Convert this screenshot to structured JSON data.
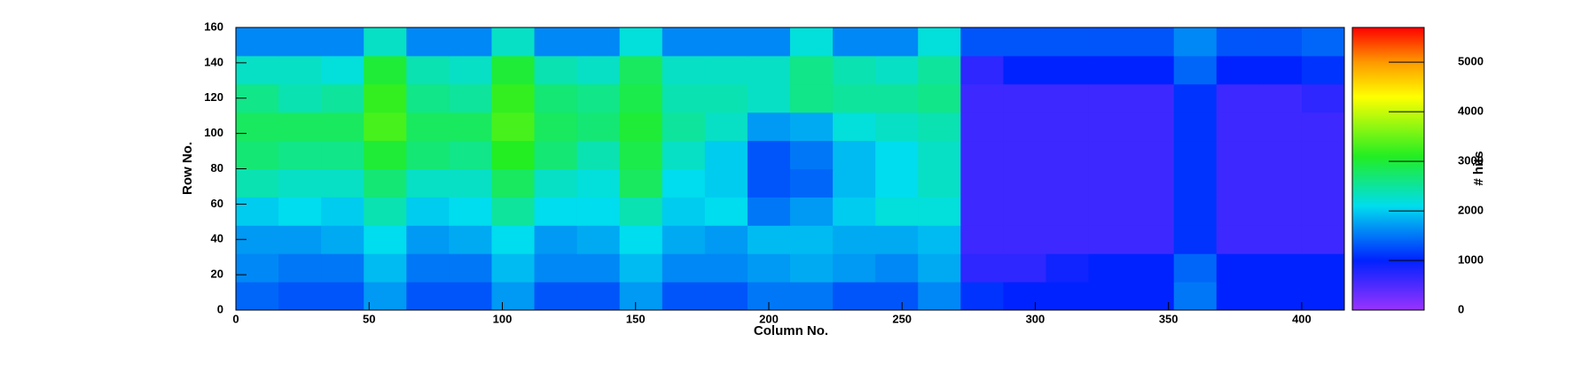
{
  "chart_data": {
    "type": "heatmap",
    "x_label": "Column No.",
    "y_label": "Row No.",
    "z_label": "# hits",
    "xlim": [
      0,
      416
    ],
    "ylim": [
      0,
      160
    ],
    "zlim": [
      0,
      5700
    ],
    "xticks": [
      0,
      50,
      100,
      150,
      200,
      250,
      300,
      350,
      400
    ],
    "yticks": [
      0,
      20,
      40,
      60,
      80,
      100,
      120,
      140,
      160
    ],
    "zticks": [
      0,
      1000,
      2000,
      3000,
      4000,
      5000
    ],
    "xbins": [
      0,
      16,
      32,
      48,
      64,
      80,
      96,
      112,
      128,
      144,
      160,
      176,
      192,
      208,
      224,
      240,
      256,
      272,
      288,
      304,
      320,
      336,
      352,
      368,
      384,
      400,
      416
    ],
    "ybins": [
      0,
      16,
      32,
      48,
      64,
      80,
      96,
      112,
      128,
      144,
      160
    ],
    "colorscale": [
      [
        0,
        "#9933ff"
      ],
      [
        1000,
        "#0022ff"
      ],
      [
        2100,
        "#00ddee"
      ],
      [
        3100,
        "#22ee22"
      ],
      [
        4300,
        "#ffff00"
      ],
      [
        5000,
        "#ff9900"
      ],
      [
        5700,
        "#ff0000"
      ]
    ],
    "values": [
      [
        1400,
        1300,
        1300,
        1700,
        1300,
        1300,
        1700,
        1300,
        1300,
        1700,
        1300,
        1300,
        1500,
        1500,
        1300,
        1300,
        1600,
        1100,
        1000,
        1000,
        1000,
        1000,
        1500,
        1000,
        1000,
        1000
      ],
      [
        1600,
        1500,
        1500,
        1900,
        1500,
        1500,
        1900,
        1600,
        1600,
        1900,
        1600,
        1600,
        1700,
        1800,
        1700,
        1600,
        1800,
        700,
        700,
        900,
        1000,
        1000,
        1400,
        1000,
        1000,
        1000
      ],
      [
        1700,
        1700,
        1800,
        2100,
        1700,
        1800,
        2100,
        1700,
        1800,
        2100,
        1800,
        1700,
        1900,
        1900,
        1800,
        1800,
        1900,
        600,
        600,
        600,
        600,
        600,
        1100,
        600,
        600,
        600
      ],
      [
        2000,
        2100,
        2000,
        2400,
        2000,
        2100,
        2500,
        2100,
        2100,
        2400,
        2000,
        2100,
        1500,
        1700,
        2000,
        2200,
        2200,
        600,
        600,
        600,
        600,
        600,
        1100,
        600,
        600,
        600
      ],
      [
        2400,
        2300,
        2300,
        2700,
        2300,
        2300,
        2800,
        2300,
        2200,
        2800,
        2100,
        2000,
        1300,
        1400,
        1900,
        2100,
        2300,
        600,
        600,
        600,
        600,
        600,
        1100,
        600,
        600,
        600
      ],
      [
        2700,
        2600,
        2600,
        3000,
        2700,
        2600,
        3100,
        2700,
        2400,
        2900,
        2300,
        2000,
        1300,
        1500,
        1900,
        2100,
        2300,
        600,
        600,
        600,
        600,
        600,
        1100,
        600,
        600,
        600
      ],
      [
        2800,
        2800,
        2800,
        3300,
        2800,
        2800,
        3300,
        2800,
        2700,
        3000,
        2500,
        2300,
        1700,
        1800,
        2200,
        2300,
        2400,
        600,
        600,
        600,
        600,
        600,
        1100,
        600,
        600,
        600
      ],
      [
        2600,
        2400,
        2500,
        3200,
        2600,
        2500,
        3200,
        2700,
        2600,
        2900,
        2400,
        2400,
        2300,
        2600,
        2500,
        2500,
        2600,
        600,
        600,
        600,
        600,
        600,
        1100,
        600,
        600,
        700
      ],
      [
        2300,
        2300,
        2200,
        3000,
        2400,
        2300,
        3000,
        2400,
        2300,
        2800,
        2300,
        2300,
        2300,
        2600,
        2400,
        2300,
        2500,
        700,
        1000,
        1000,
        1000,
        1000,
        1400,
        1000,
        1000,
        1100
      ],
      [
        1600,
        1600,
        1600,
        2300,
        1600,
        1600,
        2300,
        1600,
        1600,
        2200,
        1600,
        1600,
        1600,
        2200,
        1600,
        1600,
        2200,
        1300,
        1300,
        1300,
        1300,
        1300,
        1600,
        1300,
        1300,
        1400
      ]
    ]
  }
}
